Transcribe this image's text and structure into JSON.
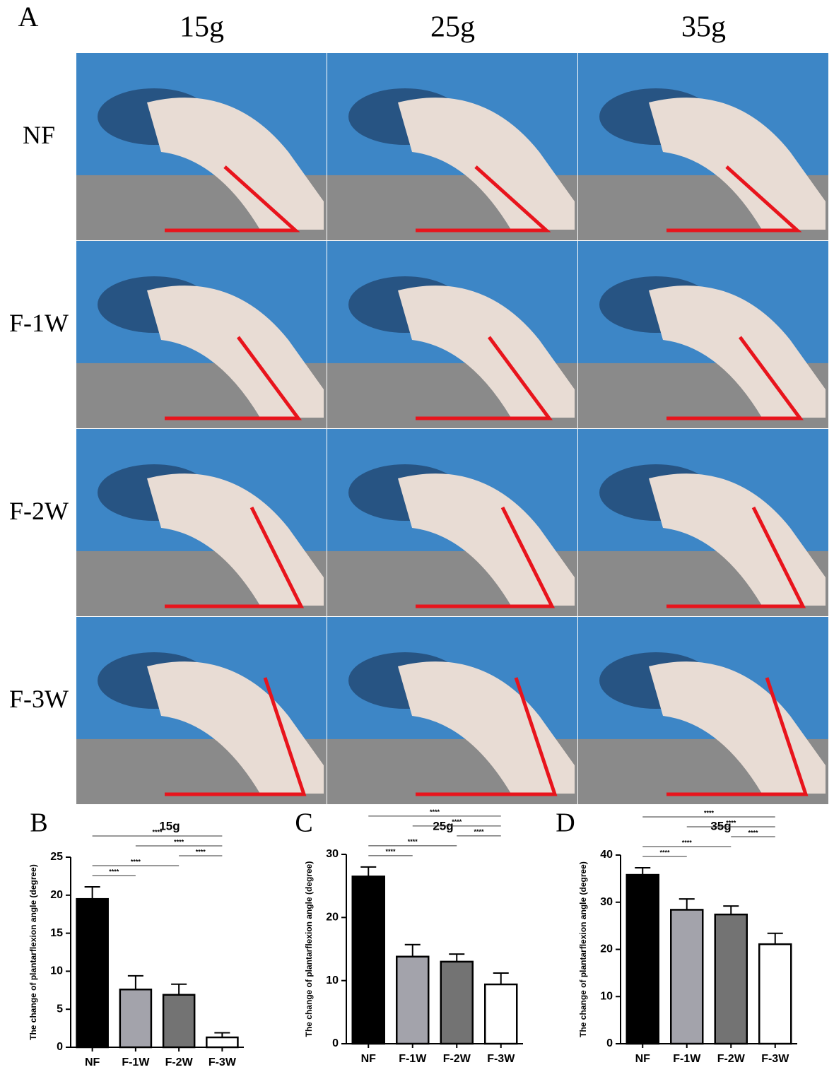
{
  "panel_a": {
    "letter": "A",
    "columns": [
      "15g",
      "25g",
      "35g"
    ],
    "rows": [
      "NF",
      "F-1W",
      "F-2W",
      "F-3W"
    ]
  },
  "chart_data": [
    {
      "type": "bar",
      "letter": "B",
      "title": "15g",
      "ylabel": "The change of plantarflexion angle (degree)",
      "categories": [
        "NF",
        "F-1W",
        "F-2W",
        "F-3W"
      ],
      "values": [
        19.5,
        7.6,
        6.9,
        1.3
      ],
      "errors": [
        1.6,
        1.8,
        1.4,
        0.6
      ],
      "colors": [
        "#000000",
        "#a3a3ab",
        "#737373",
        "#ffffff"
      ],
      "ylim": [
        0,
        25
      ],
      "yticks": [
        0,
        5,
        10,
        15,
        20,
        25
      ],
      "comparisons": [
        {
          "from": "NF",
          "to": "F-1W",
          "label": "****"
        },
        {
          "from": "NF",
          "to": "F-2W",
          "label": "****"
        },
        {
          "from": "F-2W",
          "to": "F-3W",
          "label": "****"
        },
        {
          "from": "F-1W",
          "to": "F-3W",
          "label": "****"
        },
        {
          "from": "NF",
          "to": "F-3W",
          "label": "****"
        }
      ]
    },
    {
      "type": "bar",
      "letter": "C",
      "title": "25g",
      "ylabel": "The change of plantarflexion angle (degree)",
      "categories": [
        "NF",
        "F-1W",
        "F-2W",
        "F-3W"
      ],
      "values": [
        26.5,
        13.8,
        13.0,
        9.4
      ],
      "errors": [
        1.5,
        1.9,
        1.2,
        1.8
      ],
      "colors": [
        "#000000",
        "#a3a3ab",
        "#737373",
        "#ffffff"
      ],
      "ylim": [
        0,
        30
      ],
      "yticks": [
        0,
        10,
        20,
        30
      ],
      "comparisons": [
        {
          "from": "NF",
          "to": "F-1W",
          "label": "****"
        },
        {
          "from": "NF",
          "to": "F-2W",
          "label": "****"
        },
        {
          "from": "F-2W",
          "to": "F-3W",
          "label": "****"
        },
        {
          "from": "F-1W",
          "to": "F-3W",
          "label": "****"
        },
        {
          "from": "NF",
          "to": "F-3W",
          "label": "****"
        }
      ]
    },
    {
      "type": "bar",
      "letter": "D",
      "title": "35g",
      "ylabel": "The change of plantarflexion angle (degree)",
      "categories": [
        "NF",
        "F-1W",
        "F-2W",
        "F-3W"
      ],
      "values": [
        35.8,
        28.4,
        27.4,
        21.1
      ],
      "errors": [
        1.5,
        2.3,
        1.8,
        2.3
      ],
      "colors": [
        "#000000",
        "#a3a3ab",
        "#737373",
        "#ffffff"
      ],
      "ylim": [
        0,
        40
      ],
      "yticks": [
        0,
        10,
        20,
        30,
        40
      ],
      "comparisons": [
        {
          "from": "NF",
          "to": "F-1W",
          "label": "****"
        },
        {
          "from": "NF",
          "to": "F-2W",
          "label": "****"
        },
        {
          "from": "F-2W",
          "to": "F-3W",
          "label": "****"
        },
        {
          "from": "F-1W",
          "to": "F-3W",
          "label": "****"
        },
        {
          "from": "NF",
          "to": "F-3W",
          "label": "****"
        }
      ]
    }
  ]
}
